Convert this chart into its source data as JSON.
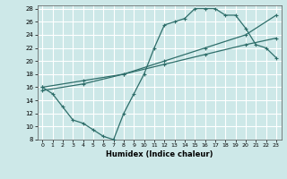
{
  "xlabel": "Humidex (Indice chaleur)",
  "bg_color": "#cde8e8",
  "grid_color": "#ffffff",
  "line_color": "#2e6e6a",
  "xlim": [
    -0.5,
    23.5
  ],
  "ylim": [
    8,
    28.5
  ],
  "xticks": [
    0,
    1,
    2,
    3,
    4,
    5,
    6,
    7,
    8,
    9,
    10,
    11,
    12,
    13,
    14,
    15,
    16,
    17,
    18,
    19,
    20,
    21,
    22,
    23
  ],
  "yticks": [
    8,
    10,
    12,
    14,
    16,
    18,
    20,
    22,
    24,
    26,
    28
  ],
  "line1_x": [
    0,
    1,
    2,
    3,
    4,
    5,
    6,
    7,
    8,
    9,
    10,
    11,
    12,
    13,
    14,
    15,
    16,
    17,
    18,
    19,
    20,
    21,
    22,
    23
  ],
  "line1_y": [
    16,
    15,
    13,
    11,
    10.5,
    9.5,
    8.5,
    8,
    12,
    15,
    18,
    22,
    25.5,
    26,
    26.5,
    28,
    28,
    28,
    27,
    27,
    25,
    22.5,
    22,
    20.5
  ],
  "line2_x": [
    0,
    4,
    8,
    12,
    16,
    20,
    23
  ],
  "line2_y": [
    16,
    17,
    18,
    19.5,
    21,
    22.5,
    23.5
  ],
  "line3_x": [
    0,
    4,
    8,
    12,
    16,
    20,
    23
  ],
  "line3_y": [
    15.5,
    16.5,
    18,
    20,
    22,
    24,
    27
  ]
}
